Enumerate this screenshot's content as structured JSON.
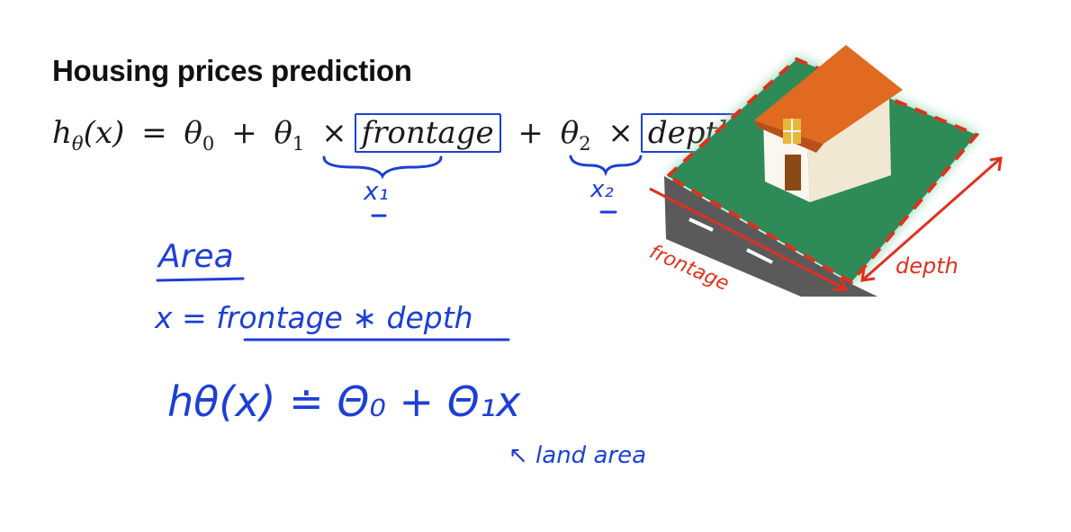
{
  "title": "Housing prices prediction",
  "formula": {
    "h": "h",
    "theta_sub": "θ",
    "x_paren": "(x)",
    "equals": "=",
    "theta0": "θ",
    "sub0": "0",
    "plus1": "+",
    "theta1": "θ",
    "sub1": "1",
    "times1": "×",
    "frontage": "frontage",
    "plus2": "+",
    "theta2": "θ",
    "sub2": "2",
    "times2": "×",
    "depth": "depth"
  },
  "annotations": {
    "x1": "x₁",
    "x2": "x₂",
    "area_heading": "Area",
    "area_eq": "x  =  frontage  ∗  depth",
    "model": "hθ(x) ≐ Θ₀ + Θ₁x",
    "land_area": "↖ land area"
  },
  "illustration": {
    "frontage_label": "frontage",
    "depth_label": "depth"
  },
  "colors": {
    "ink_blue": "#1d3fd6",
    "ink_red": "#e0301e",
    "lawn": "#2e8b57",
    "roof": "#e06a1f",
    "wall": "#f8f2e4",
    "road": "#5a5a5a"
  }
}
